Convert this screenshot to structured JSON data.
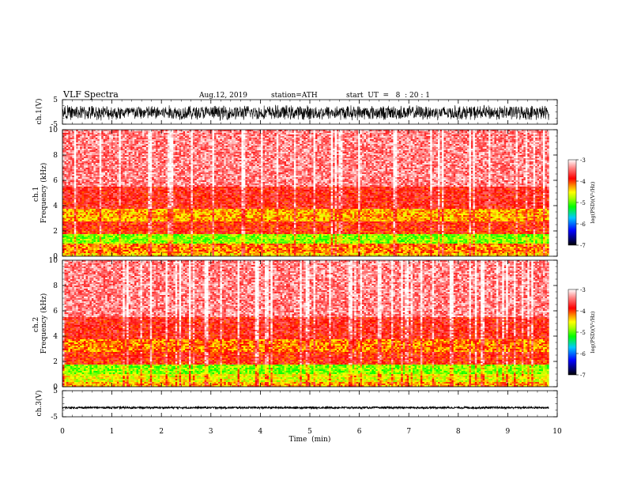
{
  "header": {
    "title": "VLF  Spectra",
    "date": "Aug.12, 2019",
    "station": "station=ATH",
    "start": "start  UT  =   8  : 20 : 1"
  },
  "chart_data": [
    {
      "type": "line",
      "ylabel": "ch.1(V)",
      "ylim": [
        -5,
        5
      ],
      "y_ticks": [
        "5",
        "-5"
      ],
      "xlim": [
        0,
        10
      ],
      "description_range": [
        -3.5,
        3.0
      ]
    },
    {
      "type": "heatmap",
      "ylabel": "ch.1\nFrequency (kHz)",
      "ylabel_lines": [
        "ch.1",
        "Frequency (kHz)"
      ],
      "ylim": [
        0,
        10
      ],
      "y_ticks": [
        "10",
        "8",
        "6",
        "4",
        "2",
        "0"
      ],
      "xlim": [
        0,
        10
      ],
      "data_xmax": 9.83,
      "colorbar": {
        "label": "log(PSD)(V²/Hz)",
        "range": [
          -7,
          -3
        ],
        "ticks": [
          "-3",
          "-4",
          "-5",
          "-6",
          "-7"
        ]
      },
      "bands": [
        {
          "from": 0.0,
          "to": 0.3,
          "level": -4.4
        },
        {
          "from": 0.3,
          "to": 1.0,
          "level": -4.2
        },
        {
          "from": 1.0,
          "to": 1.8,
          "level": -4.9
        },
        {
          "from": 1.8,
          "to": 2.8,
          "level": -3.9
        },
        {
          "from": 2.8,
          "to": 3.7,
          "level": -4.3
        },
        {
          "from": 3.7,
          "to": 5.5,
          "level": -3.8
        },
        {
          "from": 5.5,
          "to": 10.0,
          "level": -3.4
        }
      ]
    },
    {
      "type": "heatmap",
      "ylabel": "ch.2\nFrequency (kHz)",
      "ylabel_lines": [
        "ch.2",
        "Frequency (kHz)"
      ],
      "ylim": [
        0,
        10
      ],
      "y_ticks": [
        "10",
        "8",
        "6",
        "4",
        "2",
        "0"
      ],
      "xlim": [
        0,
        10
      ],
      "data_xmax": 9.83,
      "colorbar": {
        "label": "log(PSD)(V²/Hz)",
        "range": [
          -7,
          -3
        ],
        "ticks": [
          "-3",
          "-4",
          "-5",
          "-6",
          "-7"
        ]
      },
      "bands": [
        {
          "from": 0.0,
          "to": 0.4,
          "level": -4.3
        },
        {
          "from": 0.4,
          "to": 1.0,
          "level": -4.6
        },
        {
          "from": 1.0,
          "to": 1.8,
          "level": -4.9
        },
        {
          "from": 1.8,
          "to": 2.8,
          "level": -3.9
        },
        {
          "from": 2.8,
          "to": 3.8,
          "level": -4.2
        },
        {
          "from": 3.8,
          "to": 5.5,
          "level": -3.8
        },
        {
          "from": 5.5,
          "to": 10.0,
          "level": -3.4
        }
      ]
    },
    {
      "type": "line",
      "ylabel": "ch.3(V)",
      "ylim": [
        -5,
        5
      ],
      "y_ticks": [
        "5",
        "-5"
      ],
      "xlim": [
        0,
        10
      ],
      "level": -1.5
    }
  ],
  "xaxis": {
    "label": "Time  (min)",
    "ticks": [
      "0",
      "1",
      "2",
      "3",
      "4",
      "5",
      "6",
      "7",
      "8",
      "9",
      "10"
    ],
    "range": [
      0,
      10
    ]
  }
}
